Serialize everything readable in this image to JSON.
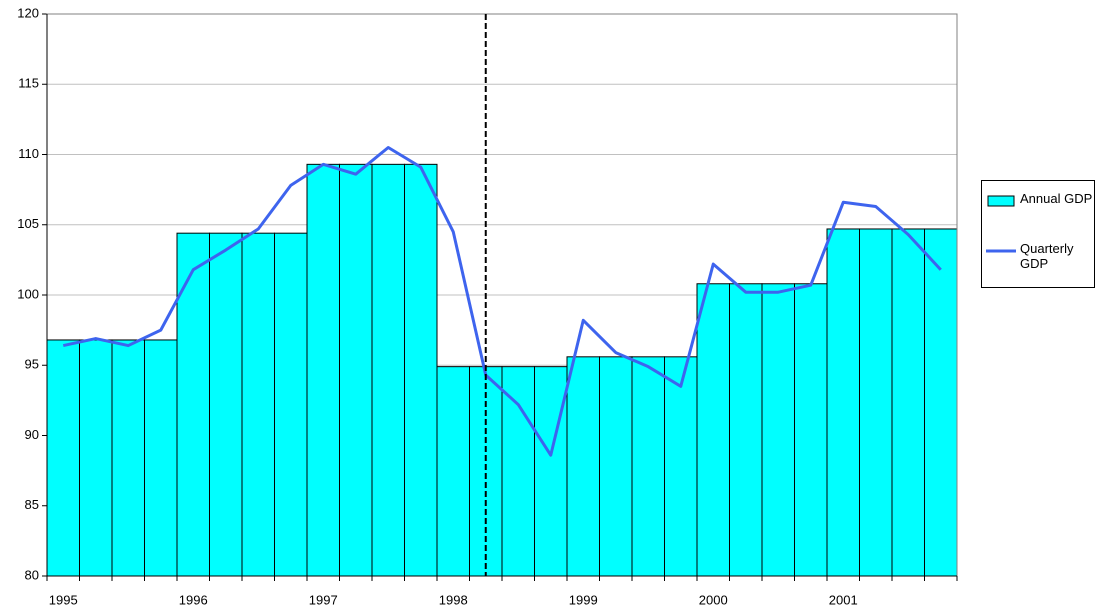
{
  "chart_data": {
    "type": "combo",
    "categories": [
      "1995",
      null,
      null,
      null,
      "1996",
      null,
      null,
      null,
      "1997",
      null,
      null,
      null,
      "1998",
      null,
      null,
      null,
      "1999",
      null,
      null,
      null,
      "2000",
      null,
      null,
      null,
      "2001",
      null,
      null,
      null
    ],
    "series": [
      {
        "name": "Annual GDP",
        "type": "bar",
        "color": "#00ffff",
        "values": [
          96.8,
          96.8,
          96.8,
          96.8,
          104.4,
          104.4,
          104.4,
          104.4,
          109.3,
          109.3,
          109.3,
          109.3,
          94.9,
          94.9,
          94.9,
          94.9,
          95.6,
          95.6,
          95.6,
          95.6,
          100.8,
          100.8,
          100.8,
          100.8,
          104.7,
          104.7,
          104.7,
          104.7
        ]
      },
      {
        "name": "Quarterly GDP",
        "type": "line",
        "color": "#3e64ee",
        "values": [
          96.4,
          96.9,
          96.4,
          97.5,
          101.8,
          103.2,
          104.7,
          107.8,
          109.3,
          108.6,
          110.5,
          109.1,
          104.5,
          94.3,
          92.2,
          88.6,
          98.2,
          95.9,
          94.9,
          93.5,
          102.2,
          100.2,
          100.2,
          100.7,
          106.6,
          106.3,
          104.3,
          101.8
        ]
      }
    ],
    "ylim": [
      80,
      120
    ],
    "yticks": [
      80,
      85,
      90,
      95,
      100,
      105,
      110,
      115,
      120
    ],
    "grid": true,
    "legend": "right",
    "reference_line": {
      "category_index": 13,
      "style": "dashed"
    }
  }
}
